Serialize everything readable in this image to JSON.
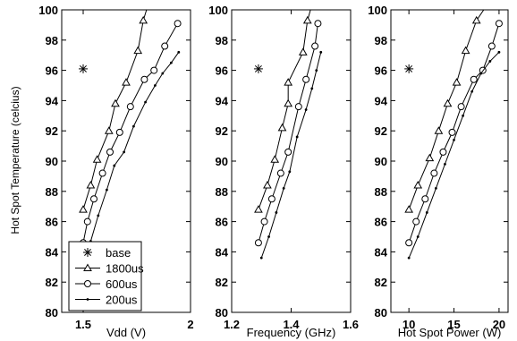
{
  "chart_data": {
    "type": "line",
    "ylabel": "Hot Spot Temperature (celcius)",
    "ylim": [
      80,
      100
    ],
    "yticks": [
      80,
      82,
      84,
      86,
      88,
      90,
      92,
      94,
      96,
      98,
      100
    ],
    "legend": {
      "placement": "bottom-right of first panel",
      "entries": [
        {
          "name": "base",
          "marker": "star"
        },
        {
          "name": "1800us",
          "marker": "triangle"
        },
        {
          "name": "600us",
          "marker": "circle"
        },
        {
          "name": "200us",
          "marker": "dot"
        }
      ]
    },
    "panels": [
      {
        "xlabel": "Vdd (V)",
        "xlim": [
          1.4,
          2.0
        ],
        "xticks": [
          1.5,
          2
        ],
        "xticklabels": [
          "1.5",
          "2"
        ],
        "series": [
          {
            "name": "base",
            "marker": "star",
            "x": [
              1.5
            ],
            "y": [
              96.1
            ]
          },
          {
            "name": "1800us",
            "marker": "triangle",
            "x": [
              1.5,
              1.535,
              1.565,
              1.62,
              1.65,
              1.7,
              1.755,
              1.78,
              1.795
            ],
            "y": [
              86.8,
              88.4,
              90.1,
              92.0,
              93.8,
              95.2,
              97.3,
              99.3,
              100.0
            ]
          },
          {
            "name": "600us",
            "marker": "circle",
            "x": [
              1.5,
              1.52,
              1.55,
              1.59,
              1.625,
              1.67,
              1.72,
              1.785,
              1.83,
              1.88,
              1.94
            ],
            "y": [
              84.6,
              86.0,
              87.5,
              89.2,
              90.6,
              91.9,
              93.6,
              95.4,
              96.0,
              97.6,
              99.1
            ]
          },
          {
            "name": "200us",
            "marker": "dot",
            "x": [
              1.535,
              1.57,
              1.61,
              1.645,
              1.69,
              1.735,
              1.79,
              1.835,
              1.87,
              1.91,
              1.945
            ],
            "y": [
              84.7,
              86.4,
              88.1,
              89.7,
              90.6,
              92.3,
              93.9,
              95.0,
              95.8,
              96.5,
              97.2
            ]
          }
        ]
      },
      {
        "xlabel": "Frequency (GHz)",
        "xlim": [
          1.2,
          1.6
        ],
        "xticks": [
          1.2,
          1.4,
          1.6
        ],
        "xticklabels": [
          "1.2",
          "1.4",
          "1.6"
        ],
        "series": [
          {
            "name": "base",
            "marker": "star",
            "x": [
              1.29
            ],
            "y": [
              96.1
            ]
          },
          {
            "name": "1800us",
            "marker": "triangle",
            "x": [
              1.29,
              1.32,
              1.345,
              1.37,
              1.39,
              1.39,
              1.44,
              1.455,
              1.465
            ],
            "y": [
              86.8,
              88.4,
              90.1,
              92.2,
              93.8,
              95.2,
              97.2,
              99.3,
              100.0
            ]
          },
          {
            "name": "600us",
            "marker": "circle",
            "x": [
              1.29,
              1.31,
              1.335,
              1.365,
              1.39,
              1.425,
              1.45,
              1.48,
              1.49
            ],
            "y": [
              84.6,
              86.0,
              87.5,
              89.2,
              90.6,
              93.6,
              95.4,
              97.6,
              99.1
            ]
          },
          {
            "name": "200us",
            "marker": "dot",
            "x": [
              1.3,
              1.325,
              1.35,
              1.375,
              1.395,
              1.42,
              1.45,
              1.47,
              1.485,
              1.5
            ],
            "y": [
              83.6,
              85.0,
              86.6,
              88.2,
              89.3,
              91.6,
              93.4,
              94.8,
              96.0,
              97.2
            ]
          }
        ]
      },
      {
        "xlabel": "Hot Spot Power (W)",
        "xlim": [
          8,
          21
        ],
        "xticks": [
          10,
          15,
          20
        ],
        "xticklabels": [
          "10",
          "15",
          "20"
        ],
        "series": [
          {
            "name": "base",
            "marker": "star",
            "x": [
              10
            ],
            "y": [
              96.1
            ]
          },
          {
            "name": "1800us",
            "marker": "triangle",
            "x": [
              10,
              11,
              12.3,
              13.3,
              14.3,
              15.3,
              16.3,
              17.5,
              18.3
            ],
            "y": [
              86.8,
              88.4,
              90.2,
              92.0,
              93.8,
              95.2,
              97.3,
              99.3,
              100.0
            ]
          },
          {
            "name": "600us",
            "marker": "circle",
            "x": [
              10,
              10.8,
              11.8,
              12.8,
              13.8,
              14.8,
              15.8,
              17.2,
              18.2,
              19.2,
              20
            ],
            "y": [
              84.6,
              86.0,
              87.5,
              89.2,
              90.6,
              91.9,
              93.6,
              95.4,
              96.0,
              97.6,
              99.1
            ]
          },
          {
            "name": "200us",
            "marker": "dot",
            "x": [
              10,
              11,
              12,
              13,
              14,
              15,
              16,
              17,
              18,
              19,
              20
            ],
            "y": [
              83.6,
              85.0,
              86.6,
              88.2,
              89.8,
              91.4,
              93.0,
              94.6,
              95.8,
              96.6,
              97.2
            ]
          }
        ]
      }
    ]
  }
}
